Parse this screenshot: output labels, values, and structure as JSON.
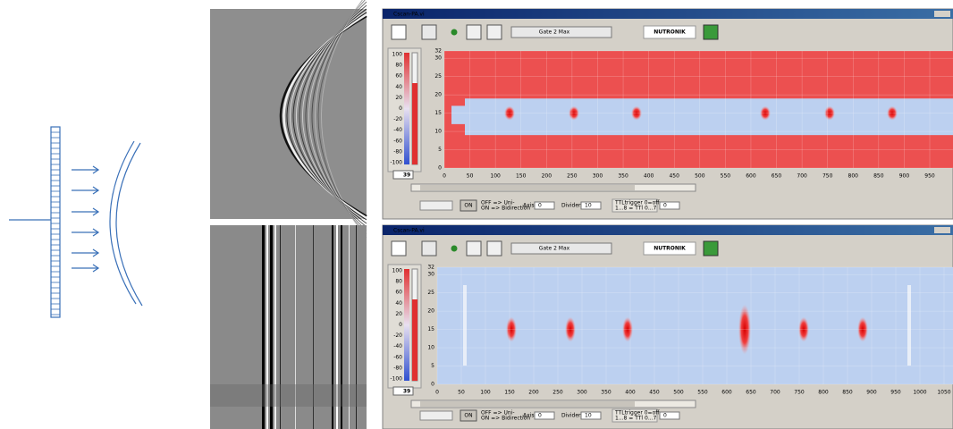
{
  "windows": [
    {
      "title": "Cscan-PA.vi",
      "gate": "Gate 2 Max",
      "brand": "NUTRONIK",
      "scale_ticks": [
        100,
        80,
        60,
        40,
        20,
        0,
        -20,
        -40,
        -60,
        -80,
        -100
      ],
      "scale_value": 39,
      "y_ticks": [
        32,
        30,
        25,
        20,
        15,
        10,
        5,
        0
      ],
      "x_ticks": [
        0,
        50,
        100,
        150,
        200,
        250,
        300,
        350,
        400,
        450,
        500,
        550,
        600,
        650,
        700,
        750,
        800,
        850,
        900,
        950
      ],
      "controls": {
        "button": "ON",
        "mode_1": "OFF => Uni-",
        "mode_2": "ON => Bidirection",
        "axis_label": "Axis",
        "axis_value": 0,
        "divider_label": "Divider",
        "divider_value": 10,
        "ttl_1": "TTLtrigger 0=off",
        "ttl_2": "1...8 = TTl 0...7",
        "ttl_value": 0
      }
    },
    {
      "title": "Cscan-PA.vi",
      "gate": "Gate 2 Max",
      "brand": "NUTRONIK",
      "scale_ticks": [
        100,
        80,
        60,
        40,
        20,
        0,
        -20,
        -40,
        -60,
        -80,
        -100
      ],
      "scale_value": 39,
      "y_ticks": [
        32,
        30,
        25,
        20,
        15,
        10,
        5,
        0
      ],
      "x_ticks": [
        0,
        50,
        100,
        150,
        200,
        250,
        300,
        350,
        400,
        450,
        500,
        550,
        600,
        650,
        700,
        750,
        800,
        850,
        900,
        950,
        1000,
        1050
      ],
      "controls": {
        "button": "ON",
        "mode_1": "OFF => Uni-",
        "mode_2": "ON => Bidirection",
        "axis_label": "Axis",
        "axis_value": 0,
        "divider_label": "Divider",
        "divider_value": 10,
        "ttl_1": "TTLtrigger 0=off",
        "ttl_2": "1...8 = TTl 0...7",
        "ttl_value": 0
      }
    }
  ]
}
